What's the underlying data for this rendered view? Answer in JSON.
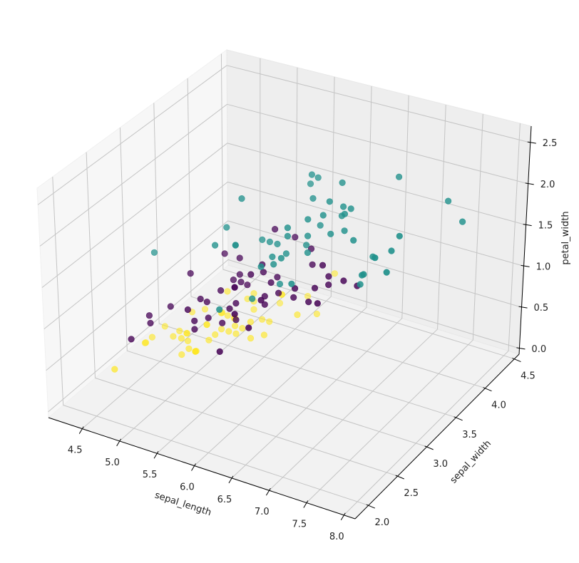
{
  "chart_data": {
    "type": "scatter3d",
    "xlabel": "sepal_length",
    "ylabel": "sepal_width",
    "zlabel": "petal_width",
    "xlim": [
      4.05,
      8.15
    ],
    "ylim": [
      1.77,
      4.58
    ],
    "zlim": [
      -0.07,
      2.7
    ],
    "xticks": [
      "4.5",
      "5.0",
      "5.5",
      "6.0",
      "6.5",
      "7.0",
      "7.5",
      "8.0"
    ],
    "yticks": [
      "2.0",
      "2.5",
      "3.0",
      "3.5",
      "4.0",
      "4.5"
    ],
    "zticks": [
      "0.0",
      "0.5",
      "1.0",
      "1.5",
      "2.0",
      "2.5"
    ],
    "grid": true,
    "colormap": "viridis",
    "groups": [
      {
        "color": "#fde725",
        "points": [
          [
            5.1,
            3.5,
            0.2
          ],
          [
            4.9,
            3.0,
            0.2
          ],
          [
            4.7,
            3.2,
            0.2
          ],
          [
            4.6,
            3.1,
            0.2
          ],
          [
            5.0,
            3.6,
            0.2
          ],
          [
            5.4,
            3.9,
            0.4
          ],
          [
            4.6,
            3.4,
            0.3
          ],
          [
            5.0,
            3.4,
            0.2
          ],
          [
            4.4,
            2.9,
            0.2
          ],
          [
            4.9,
            3.1,
            0.1
          ],
          [
            5.4,
            3.7,
            0.2
          ],
          [
            4.8,
            3.4,
            0.2
          ],
          [
            4.8,
            3.0,
            0.1
          ],
          [
            4.3,
            3.0,
            0.1
          ],
          [
            5.8,
            4.0,
            0.2
          ],
          [
            5.7,
            4.4,
            0.4
          ],
          [
            5.4,
            3.9,
            0.4
          ],
          [
            5.1,
            3.5,
            0.3
          ],
          [
            5.7,
            3.8,
            0.3
          ],
          [
            5.1,
            3.8,
            0.3
          ],
          [
            5.4,
            3.4,
            0.2
          ],
          [
            5.1,
            3.7,
            0.4
          ],
          [
            4.6,
            3.6,
            0.2
          ],
          [
            5.1,
            3.3,
            0.5
          ],
          [
            4.8,
            3.4,
            0.2
          ],
          [
            5.0,
            3.0,
            0.2
          ],
          [
            5.0,
            3.4,
            0.4
          ],
          [
            5.2,
            3.5,
            0.2
          ],
          [
            5.2,
            3.4,
            0.2
          ],
          [
            4.7,
            3.2,
            0.2
          ],
          [
            4.8,
            3.1,
            0.2
          ],
          [
            5.4,
            3.4,
            0.4
          ],
          [
            5.2,
            4.1,
            0.1
          ],
          [
            5.5,
            4.2,
            0.2
          ],
          [
            4.9,
            3.1,
            0.1
          ],
          [
            5.0,
            3.2,
            0.2
          ],
          [
            5.5,
            3.5,
            0.2
          ],
          [
            4.9,
            3.1,
            0.1
          ],
          [
            4.4,
            3.0,
            0.2
          ],
          [
            5.1,
            3.4,
            0.2
          ],
          [
            5.0,
            3.5,
            0.3
          ],
          [
            4.5,
            2.3,
            0.3
          ],
          [
            4.4,
            3.2,
            0.2
          ],
          [
            5.0,
            3.5,
            0.6
          ],
          [
            5.1,
            3.8,
            0.4
          ],
          [
            4.8,
            3.0,
            0.3
          ],
          [
            5.1,
            3.8,
            0.2
          ],
          [
            4.6,
            3.2,
            0.2
          ],
          [
            5.3,
            3.7,
            0.2
          ],
          [
            5.0,
            3.3,
            0.2
          ]
        ]
      },
      {
        "color": "#440154",
        "points": [
          [
            7.0,
            3.2,
            1.4
          ],
          [
            6.4,
            3.2,
            1.5
          ],
          [
            6.9,
            3.1,
            1.5
          ],
          [
            5.5,
            2.3,
            1.3
          ],
          [
            6.5,
            2.8,
            1.5
          ],
          [
            5.7,
            2.8,
            1.3
          ],
          [
            6.3,
            3.3,
            1.6
          ],
          [
            4.9,
            2.4,
            1.0
          ],
          [
            6.6,
            2.9,
            1.3
          ],
          [
            5.2,
            2.7,
            1.4
          ],
          [
            5.0,
            2.0,
            1.0
          ],
          [
            5.9,
            3.0,
            1.5
          ],
          [
            6.0,
            2.2,
            1.0
          ],
          [
            6.1,
            2.9,
            1.4
          ],
          [
            5.6,
            2.9,
            1.3
          ],
          [
            6.7,
            3.1,
            1.4
          ],
          [
            5.6,
            3.0,
            1.5
          ],
          [
            5.8,
            2.7,
            1.0
          ],
          [
            6.2,
            2.2,
            1.5
          ],
          [
            5.6,
            2.5,
            1.1
          ],
          [
            5.9,
            3.2,
            1.8
          ],
          [
            6.1,
            2.8,
            1.3
          ],
          [
            6.3,
            2.5,
            1.5
          ],
          [
            6.1,
            2.8,
            1.2
          ],
          [
            6.4,
            2.9,
            1.3
          ],
          [
            6.6,
            3.0,
            1.4
          ],
          [
            6.8,
            2.8,
            1.4
          ],
          [
            6.7,
            3.0,
            1.7
          ],
          [
            6.0,
            2.9,
            1.5
          ],
          [
            5.7,
            2.6,
            1.0
          ],
          [
            5.5,
            2.4,
            1.1
          ],
          [
            5.5,
            2.4,
            1.0
          ],
          [
            5.8,
            2.7,
            1.2
          ],
          [
            6.0,
            2.7,
            1.6
          ],
          [
            5.4,
            3.0,
            1.5
          ],
          [
            6.0,
            3.4,
            1.6
          ],
          [
            6.7,
            3.1,
            1.5
          ],
          [
            6.3,
            2.3,
            1.3
          ],
          [
            5.6,
            3.0,
            1.3
          ],
          [
            5.5,
            2.5,
            1.3
          ],
          [
            5.5,
            2.6,
            1.2
          ],
          [
            6.1,
            3.0,
            1.4
          ],
          [
            5.8,
            2.6,
            1.2
          ],
          [
            5.0,
            2.3,
            1.0
          ],
          [
            5.6,
            2.7,
            1.3
          ],
          [
            5.7,
            3.0,
            1.2
          ],
          [
            5.7,
            2.9,
            1.3
          ],
          [
            6.2,
            2.9,
            1.3
          ],
          [
            5.1,
            2.5,
            1.1
          ],
          [
            5.7,
            2.8,
            1.3
          ]
        ]
      },
      {
        "color": "#21918c",
        "points": [
          [
            6.3,
            3.3,
            2.5
          ],
          [
            5.8,
            2.7,
            1.9
          ],
          [
            7.1,
            3.0,
            2.1
          ],
          [
            6.3,
            2.9,
            1.8
          ],
          [
            6.5,
            3.0,
            2.2
          ],
          [
            7.6,
            3.0,
            2.1
          ],
          [
            4.9,
            2.5,
            1.7
          ],
          [
            7.3,
            2.9,
            1.8
          ],
          [
            6.7,
            2.5,
            1.8
          ],
          [
            7.2,
            3.6,
            2.5
          ],
          [
            6.5,
            3.2,
            2.0
          ],
          [
            6.4,
            2.7,
            1.9
          ],
          [
            6.8,
            3.0,
            2.1
          ],
          [
            5.7,
            2.5,
            2.0
          ],
          [
            5.8,
            2.8,
            2.4
          ],
          [
            6.4,
            3.2,
            2.3
          ],
          [
            6.5,
            3.0,
            1.8
          ],
          [
            7.7,
            3.8,
            2.2
          ],
          [
            7.7,
            2.6,
            2.3
          ],
          [
            6.0,
            2.2,
            1.5
          ],
          [
            6.9,
            3.2,
            2.3
          ],
          [
            5.6,
            2.8,
            2.0
          ],
          [
            7.7,
            2.8,
            2.0
          ],
          [
            6.3,
            2.7,
            1.8
          ],
          [
            6.7,
            3.3,
            2.1
          ],
          [
            7.2,
            3.2,
            1.8
          ],
          [
            6.2,
            2.8,
            1.8
          ],
          [
            6.1,
            3.0,
            1.8
          ],
          [
            6.4,
            2.8,
            2.1
          ],
          [
            7.2,
            3.0,
            1.6
          ],
          [
            7.4,
            2.8,
            1.9
          ],
          [
            7.9,
            3.8,
            2.0
          ],
          [
            6.4,
            2.8,
            2.2
          ],
          [
            6.3,
            2.8,
            1.5
          ],
          [
            6.1,
            2.6,
            1.4
          ],
          [
            7.7,
            3.0,
            2.3
          ],
          [
            6.3,
            3.4,
            2.4
          ],
          [
            6.4,
            3.1,
            1.8
          ],
          [
            6.0,
            3.0,
            1.8
          ],
          [
            6.9,
            3.1,
            2.1
          ],
          [
            6.7,
            3.1,
            2.4
          ],
          [
            6.9,
            3.1,
            2.3
          ],
          [
            5.8,
            2.7,
            1.9
          ],
          [
            6.8,
            3.2,
            2.3
          ],
          [
            6.7,
            3.3,
            2.5
          ],
          [
            6.7,
            3.0,
            2.3
          ],
          [
            6.3,
            2.5,
            1.9
          ],
          [
            6.5,
            3.0,
            2.0
          ],
          [
            6.2,
            3.4,
            2.3
          ],
          [
            5.9,
            3.0,
            1.8
          ]
        ]
      }
    ]
  }
}
